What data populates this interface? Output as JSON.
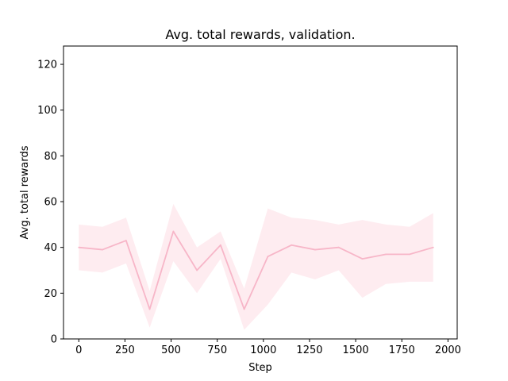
{
  "chart_data": {
    "type": "line",
    "title": "Avg. total rewards, validation.",
    "xlabel": "Step",
    "ylabel": "Avg. total rewards",
    "xlim": [
      -83,
      2050
    ],
    "ylim": [
      0,
      128
    ],
    "xticks": [
      0,
      250,
      500,
      750,
      1000,
      1250,
      1500,
      1750,
      2000
    ],
    "yticks": [
      0,
      20,
      40,
      60,
      80,
      100,
      120
    ],
    "grid": false,
    "legend": "none",
    "series": [
      {
        "color": "#f7b6c8",
        "band_color": "#fde4ea",
        "x": [
          0,
          128,
          256,
          384,
          512,
          640,
          768,
          896,
          1024,
          1152,
          1280,
          1408,
          1536,
          1664,
          1792,
          1920
        ],
        "values": [
          40,
          39,
          43,
          13,
          47,
          30,
          41,
          13,
          36,
          41,
          39,
          40,
          35,
          37,
          37,
          40
        ],
        "upper": [
          50,
          49,
          53,
          21,
          59,
          40,
          47,
          22,
          57,
          53,
          52,
          50,
          52,
          50,
          49,
          55
        ],
        "lower": [
          30,
          29,
          33,
          5,
          34,
          20,
          35,
          4,
          15,
          29,
          26,
          30,
          18,
          24,
          25,
          25
        ]
      }
    ]
  }
}
